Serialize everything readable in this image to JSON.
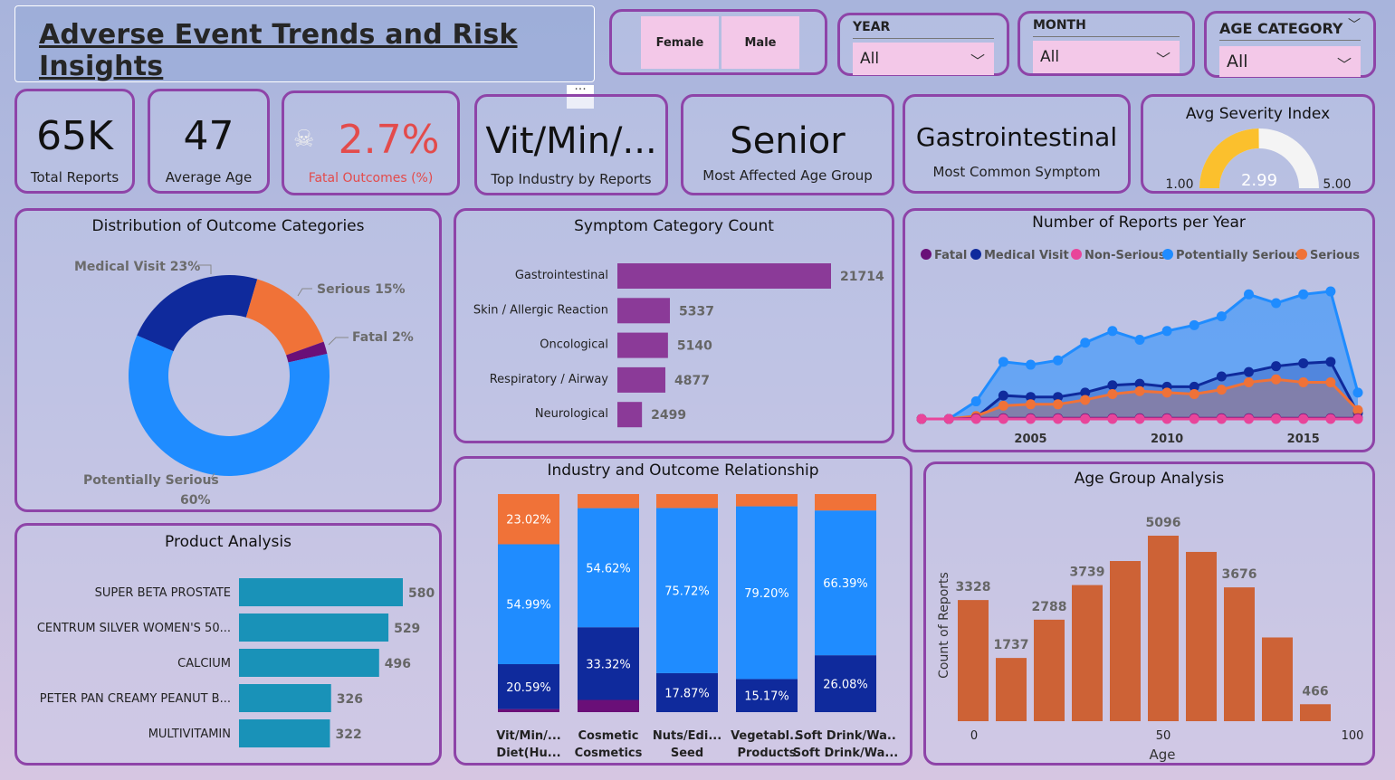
{
  "header": {
    "title": "Adverse Event Trends and Risk Insights"
  },
  "gender_slicer": {
    "options": [
      "Female",
      "Male"
    ]
  },
  "slicers": {
    "year": {
      "label": "YEAR",
      "value": "All"
    },
    "month": {
      "label": "MONTH",
      "value": "All"
    },
    "age_category": {
      "label": "AGE CATEGORY",
      "value": "All"
    }
  },
  "kpis": {
    "total_reports": {
      "value": "65K",
      "label": "Total Reports"
    },
    "average_age": {
      "value": "47",
      "label": "Average Age"
    },
    "fatal_outcomes": {
      "value": "2.7%",
      "label": "Fatal Outcomes (%)"
    },
    "top_industry": {
      "value": "Vit/Min/...",
      "label": "Top Industry by Reports"
    },
    "age_group": {
      "value": "Senior",
      "label": "Most Affected Age Group"
    },
    "symptom": {
      "value": "Gastrointestinal",
      "label": "Most Common Symptom"
    },
    "severity": {
      "title": "Avg Severity Index",
      "value": "2.99",
      "min": "1.00",
      "max": "5.00",
      "value_num": 2.99,
      "min_num": 1,
      "max_num": 5
    }
  },
  "colors": {
    "purple_border": "#8e44a8",
    "fatal": "#6a0f78",
    "medical_visit": "#0f2a9c",
    "non_serious": "#e8459a",
    "potentially_serious": "#1f8cff",
    "serious": "#f07238",
    "bar_purple": "#8b3a98",
    "bar_teal": "#1992b8",
    "bar_orange": "#cd6236"
  },
  "chart_data": [
    {
      "id": "outcome_donut",
      "type": "pie",
      "title": "Distribution of Outcome Categories",
      "slices": [
        {
          "name": "Potentially Serious",
          "value": 60,
          "label": "Potentially Serious 60%"
        },
        {
          "name": "Medical Visit",
          "value": 23,
          "label": "Medical Visit 23%"
        },
        {
          "name": "Serious",
          "value": 15,
          "label": "Serious 15%"
        },
        {
          "name": "Fatal",
          "value": 2,
          "label": "Fatal 2%"
        }
      ]
    },
    {
      "id": "symptom_bar",
      "type": "bar",
      "title": "Symptom Category Count",
      "categories": [
        "Gastrointestinal",
        "Skin / Allergic Reaction",
        "Oncological",
        "Respiratory / Airway",
        "Neurological"
      ],
      "values": [
        21714,
        5337,
        5140,
        4877,
        2499
      ]
    },
    {
      "id": "reports_per_year",
      "type": "area",
      "title": "Number of Reports per Year",
      "x": [
        2001,
        2002,
        2003,
        2004,
        2005,
        2006,
        2007,
        2008,
        2009,
        2010,
        2011,
        2012,
        2013,
        2014,
        2015,
        2016,
        2017
      ],
      "xticks": [
        "2005",
        "2010",
        "2015"
      ],
      "legend_position": "top",
      "series": [
        {
          "name": "Fatal",
          "values": [
            0,
            0,
            5,
            5,
            5,
            5,
            5,
            5,
            5,
            5,
            5,
            5,
            5,
            5,
            5,
            5,
            5
          ]
        },
        {
          "name": "Medical Visit",
          "values": [
            0,
            0,
            10,
            160,
            150,
            150,
            180,
            230,
            240,
            220,
            220,
            290,
            320,
            360,
            380,
            390,
            40
          ]
        },
        {
          "name": "Non-Serious",
          "values": [
            0,
            0,
            0,
            0,
            0,
            0,
            0,
            0,
            0,
            0,
            0,
            0,
            0,
            0,
            0,
            0,
            0
          ]
        },
        {
          "name": "Potentially Serious",
          "values": [
            0,
            0,
            120,
            390,
            370,
            400,
            520,
            600,
            540,
            600,
            640,
            700,
            850,
            790,
            850,
            870,
            180
          ]
        },
        {
          "name": "Serious",
          "values": [
            0,
            0,
            20,
            90,
            100,
            100,
            130,
            170,
            190,
            180,
            170,
            200,
            250,
            270,
            250,
            250,
            60
          ]
        }
      ]
    },
    {
      "id": "product_bar",
      "type": "bar",
      "title": "Product Analysis",
      "categories": [
        "SUPER BETA PROSTATE",
        "CENTRUM SILVER WOMEN'S 50...",
        "CALCIUM",
        "PETER PAN CREAMY PEANUT B...",
        "MULTIVITAMIN"
      ],
      "values": [
        580,
        529,
        496,
        326,
        322
      ]
    },
    {
      "id": "industry_outcome",
      "type": "bar",
      "title": "Industry and Outcome Relationship",
      "stacked": "100%",
      "categories": [
        "Vit/Min/... Diet(Hu...",
        "Cosmetics",
        "Nuts/Edi... Seed",
        "Vegetabl... Products",
        "Soft Drink/Wa..."
      ],
      "series": [
        {
          "name": "Fatal",
          "values": [
            1.4,
            5.6,
            0,
            0,
            0
          ]
        },
        {
          "name": "Medical Visit",
          "values": [
            20.59,
            33.32,
            17.87,
            15.17,
            26.08
          ]
        },
        {
          "name": "Potentially Serious",
          "values": [
            54.99,
            54.62,
            75.72,
            79.2,
            66.39
          ]
        },
        {
          "name": "Serious",
          "values": [
            23.02,
            6.46,
            6.41,
            5.63,
            7.53
          ]
        }
      ],
      "data_labels": [
        [
          "",
          "20.59%",
          "54.99%",
          "23.02%"
        ],
        [
          "",
          "33.32%",
          "54.62%",
          ""
        ],
        [
          "",
          "17.87%",
          "75.72%",
          ""
        ],
        [
          "",
          "15.17%",
          "79.20%",
          ""
        ],
        [
          "",
          "26.08%",
          "66.39%",
          ""
        ]
      ]
    },
    {
      "id": "age_group",
      "type": "bar",
      "title": "Age Group Analysis",
      "xlabel": "Age",
      "ylabel": "Count of Reports",
      "xticks": [
        "0",
        "50",
        "100"
      ],
      "values": [
        3328,
        1737,
        2788,
        3739,
        4400,
        5096,
        4650,
        3676,
        2300,
        466
      ],
      "labels": [
        "3328",
        "1737",
        "2788",
        "3739",
        "",
        "5096",
        "",
        "3676",
        "",
        "466"
      ]
    }
  ]
}
